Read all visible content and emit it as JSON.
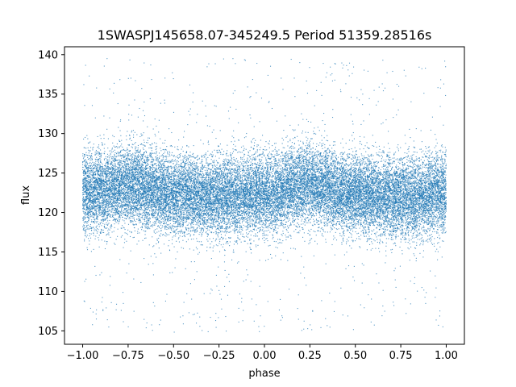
{
  "chart_data": {
    "type": "scatter",
    "title": "1SWASPJ145658.07-345249.5 Period 51359.28516s",
    "xlabel": "phase",
    "ylabel": "flux",
    "xlim": [
      -1.1,
      1.1
    ],
    "ylim": [
      103.3,
      141.0
    ],
    "x_ticks": [
      -1.0,
      -0.75,
      -0.5,
      -0.25,
      0.0,
      0.25,
      0.5,
      0.75,
      1.0
    ],
    "x_tick_labels": [
      "−1.00",
      "−0.75",
      "−0.50",
      "−0.25",
      "0.00",
      "0.25",
      "0.50",
      "0.75",
      "1.00"
    ],
    "y_ticks": [
      105,
      110,
      115,
      120,
      125,
      130,
      135,
      140
    ],
    "y_tick_labels": [
      "105",
      "110",
      "115",
      "120",
      "125",
      "130",
      "135",
      "140"
    ],
    "grid": false,
    "legend": "none",
    "point_color": "#1f77b4",
    "series": [
      {
        "phase_range": [
          -1.0,
          1.0
        ],
        "flux_range": [
          104.8,
          139.8
        ],
        "approx_points": 60000,
        "median_flux_profile": [
          {
            "phase": -1.0,
            "flux": 122.5
          },
          {
            "phase": -0.75,
            "flux": 123.5
          },
          {
            "phase": -0.5,
            "flux": 122.3
          },
          {
            "phase": -0.25,
            "flux": 122.0
          },
          {
            "phase": 0.0,
            "flux": 122.3
          },
          {
            "phase": 0.25,
            "flux": 123.5
          },
          {
            "phase": 0.5,
            "flux": 122.3
          },
          {
            "phase": 0.75,
            "flux": 121.8
          },
          {
            "phase": 1.0,
            "flux": 122.5
          }
        ],
        "core_band_halfwidth": 4.0,
        "outlier_fraction": 0.03
      }
    ]
  }
}
